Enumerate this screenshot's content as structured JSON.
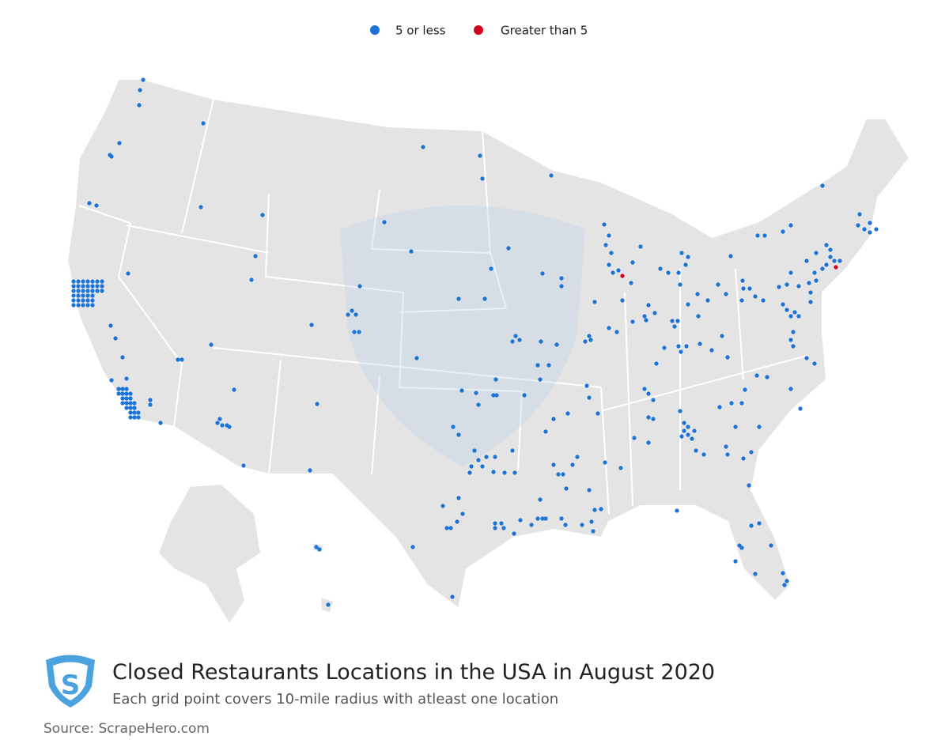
{
  "legend": {
    "items": [
      {
        "label": "5 or less",
        "color": "#1a73d6"
      },
      {
        "label": "Greater than 5",
        "color": "#d0021b"
      }
    ]
  },
  "title": "Closed Restaurants Locations in the USA in August 2020",
  "subtitle": "Each grid point covers 10-mile radius with atleast one location",
  "source": "Source: ScrapeHero.com"
}
